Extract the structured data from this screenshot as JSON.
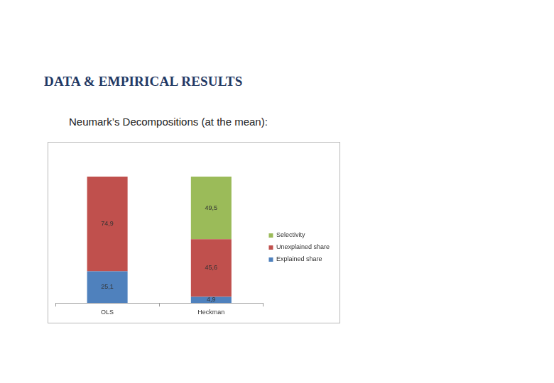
{
  "chart_data": {
    "type": "bar",
    "title": "DATA & EMPIRICAL RESULTS",
    "subtitle": "Neumark’s Decompositions (at the mean):",
    "categories": [
      "OLS",
      "Heckman"
    ],
    "series": [
      {
        "name": "Explained share",
        "color": "#4f81bd",
        "values": [
          25.1,
          4.9
        ],
        "value_labels": [
          "25,1",
          "4,9"
        ]
      },
      {
        "name": "Unexplained share",
        "color": "#c0504d",
        "values": [
          74.9,
          45.6
        ],
        "value_labels": [
          "74,9",
          "45,6"
        ]
      },
      {
        "name": "Selectivity",
        "color": "#9bbb59",
        "values": [
          null,
          49.5
        ],
        "value_labels": [
          null,
          "49,5"
        ]
      }
    ],
    "stacked": true,
    "data_labels": true,
    "ylim": [
      0,
      100
    ],
    "grid": false,
    "legend": "right",
    "tick_labels": "x"
  }
}
